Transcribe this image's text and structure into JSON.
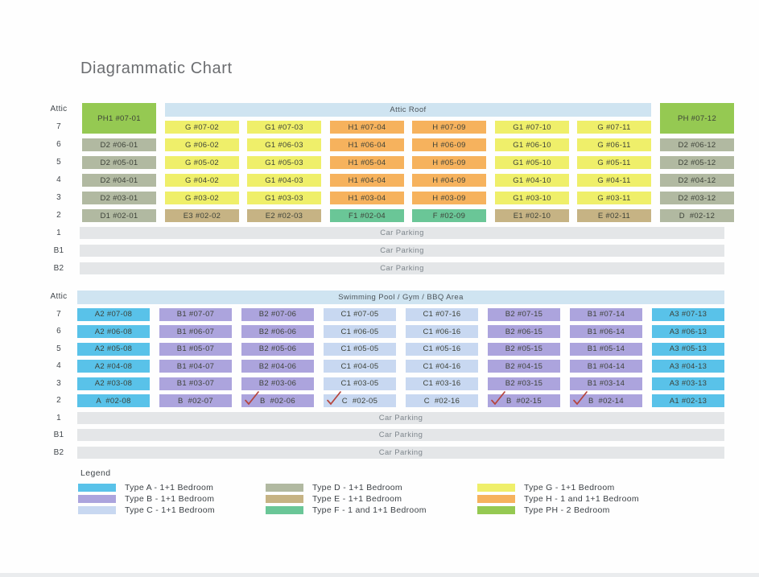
{
  "title": "Diagrammatic Chart",
  "type_colors": {
    "A": "#59c2e9",
    "B": "#aca4dd",
    "C": "#c8d8f1",
    "D": "#b1b9a1",
    "E": "#c6b384",
    "F": "#6ac697",
    "G": "#efef6a",
    "H": "#f6b25d",
    "PH": "#95c952"
  },
  "band_color": "#cfe4f1",
  "parking_color": "#e4e6e8",
  "check_color": "#b5443d",
  "blocks": [
    {
      "id": "tower-block-1",
      "band_label": "Attic Roof",
      "floors": [
        "Attic",
        "7",
        "6",
        "5",
        "4",
        "3",
        "2",
        "1",
        "B1",
        "B2"
      ],
      "columns": [
        {
          "units": [
            {
              "t": "PH",
              "l": "PH1 #07-01",
              "span_attic": true
            },
            {
              "t": "D",
              "l": "D2 #06-01"
            },
            {
              "t": "D",
              "l": "D2 #05-01"
            },
            {
              "t": "D",
              "l": "D2 #04-01"
            },
            {
              "t": "D",
              "l": "D2 #03-01"
            },
            {
              "t": "D",
              "l": "D1 #02-01"
            }
          ]
        },
        {
          "units": [
            {
              "t": "G",
              "l": "G #07-02"
            },
            {
              "t": "G",
              "l": "G #06-02"
            },
            {
              "t": "G",
              "l": "G #05-02"
            },
            {
              "t": "G",
              "l": "G #04-02"
            },
            {
              "t": "G",
              "l": "G #03-02"
            },
            {
              "t": "E",
              "l": "E3 #02-02"
            }
          ]
        },
        {
          "units": [
            {
              "t": "G",
              "l": "G1 #07-03"
            },
            {
              "t": "G",
              "l": "G1 #06-03"
            },
            {
              "t": "G",
              "l": "G1 #05-03"
            },
            {
              "t": "G",
              "l": "G1 #04-03"
            },
            {
              "t": "G",
              "l": "G1 #03-03"
            },
            {
              "t": "E",
              "l": "E2 #02-03"
            }
          ]
        },
        {
          "units": [
            {
              "t": "H",
              "l": "H1 #07-04"
            },
            {
              "t": "H",
              "l": "H1 #06-04"
            },
            {
              "t": "H",
              "l": "H1 #05-04"
            },
            {
              "t": "H",
              "l": "H1 #04-04"
            },
            {
              "t": "H",
              "l": "H1 #03-04"
            },
            {
              "t": "F",
              "l": "F1 #02-04"
            }
          ]
        },
        {
          "units": [
            {
              "t": "H",
              "l": "H #07-09"
            },
            {
              "t": "H",
              "l": "H #06-09"
            },
            {
              "t": "H",
              "l": "H #05-09"
            },
            {
              "t": "H",
              "l": "H #04-09"
            },
            {
              "t": "H",
              "l": "H #03-09"
            },
            {
              "t": "F",
              "l": "F #02-09"
            }
          ]
        },
        {
          "units": [
            {
              "t": "G",
              "l": "G1 #07-10"
            },
            {
              "t": "G",
              "l": "G1 #06-10"
            },
            {
              "t": "G",
              "l": "G1 #05-10"
            },
            {
              "t": "G",
              "l": "G1 #04-10"
            },
            {
              "t": "G",
              "l": "G1 #03-10"
            },
            {
              "t": "E",
              "l": "E1 #02-10"
            }
          ]
        },
        {
          "units": [
            {
              "t": "G",
              "l": "G #07-11"
            },
            {
              "t": "G",
              "l": "G #06-11"
            },
            {
              "t": "G",
              "l": "G #05-11"
            },
            {
              "t": "G",
              "l": "G #04-11"
            },
            {
              "t": "G",
              "l": "G #03-11"
            },
            {
              "t": "E",
              "l": "E #02-11"
            }
          ]
        },
        {
          "units": [
            {
              "t": "PH",
              "l": "PH #07-12",
              "span_attic": true
            },
            {
              "t": "D",
              "l": "D2 #06-12"
            },
            {
              "t": "D",
              "l": "D2 #05-12"
            },
            {
              "t": "D",
              "l": "D2 #04-12"
            },
            {
              "t": "D",
              "l": "D2 #03-12"
            },
            {
              "t": "D",
              "l": "D  #02-12"
            }
          ]
        }
      ],
      "parking": [
        "Car Parking",
        "Car Parking",
        "Car Parking"
      ]
    },
    {
      "id": "tower-block-2",
      "band_label": "Swimming Pool / Gym / BBQ Area",
      "floors": [
        "Attic",
        "7",
        "6",
        "5",
        "4",
        "3",
        "2",
        "1",
        "B1",
        "B2"
      ],
      "columns": [
        {
          "units": [
            {
              "t": "A",
              "l": "A2 #07-08"
            },
            {
              "t": "A",
              "l": "A2 #06-08"
            },
            {
              "t": "A",
              "l": "A2 #05-08"
            },
            {
              "t": "A",
              "l": "A2 #04-08"
            },
            {
              "t": "A",
              "l": "A2 #03-08"
            },
            {
              "t": "A",
              "l": "A  #02-08"
            }
          ]
        },
        {
          "units": [
            {
              "t": "B",
              "l": "B1 #07-07"
            },
            {
              "t": "B",
              "l": "B1 #06-07"
            },
            {
              "t": "B",
              "l": "B1 #05-07"
            },
            {
              "t": "B",
              "l": "B1 #04-07"
            },
            {
              "t": "B",
              "l": "B1 #03-07"
            },
            {
              "t": "B",
              "l": "B  #02-07"
            }
          ]
        },
        {
          "units": [
            {
              "t": "B",
              "l": "B2 #07-06"
            },
            {
              "t": "B",
              "l": "B2 #06-06"
            },
            {
              "t": "B",
              "l": "B2 #05-06"
            },
            {
              "t": "B",
              "l": "B2 #04-06"
            },
            {
              "t": "B",
              "l": "B2 #03-06"
            },
            {
              "t": "B",
              "l": "B  #02-06",
              "check": true
            }
          ]
        },
        {
          "units": [
            {
              "t": "C",
              "l": "C1 #07-05"
            },
            {
              "t": "C",
              "l": "C1 #06-05"
            },
            {
              "t": "C",
              "l": "C1 #05-05"
            },
            {
              "t": "C",
              "l": "C1 #04-05"
            },
            {
              "t": "C",
              "l": "C1 #03-05"
            },
            {
              "t": "C",
              "l": "C  #02-05",
              "check": true
            }
          ]
        },
        {
          "units": [
            {
              "t": "C",
              "l": "C1 #07-16"
            },
            {
              "t": "C",
              "l": "C1 #06-16"
            },
            {
              "t": "C",
              "l": "C1 #05-16"
            },
            {
              "t": "C",
              "l": "C1 #04-16"
            },
            {
              "t": "C",
              "l": "C1 #03-16"
            },
            {
              "t": "C",
              "l": "C  #02-16"
            }
          ]
        },
        {
          "units": [
            {
              "t": "B",
              "l": "B2 #07-15"
            },
            {
              "t": "B",
              "l": "B2 #06-15"
            },
            {
              "t": "B",
              "l": "B2 #05-15"
            },
            {
              "t": "B",
              "l": "B2 #04-15"
            },
            {
              "t": "B",
              "l": "B2 #03-15"
            },
            {
              "t": "B",
              "l": "B  #02-15",
              "check": true
            }
          ]
        },
        {
          "units": [
            {
              "t": "B",
              "l": "B1 #07-14"
            },
            {
              "t": "B",
              "l": "B1 #06-14"
            },
            {
              "t": "B",
              "l": "B1 #05-14"
            },
            {
              "t": "B",
              "l": "B1 #04-14"
            },
            {
              "t": "B",
              "l": "B1 #03-14"
            },
            {
              "t": "B",
              "l": "B  #02-14",
              "check": true
            }
          ]
        },
        {
          "units": [
            {
              "t": "A",
              "l": "A3 #07-13"
            },
            {
              "t": "A",
              "l": "A3 #06-13"
            },
            {
              "t": "A",
              "l": "A3 #05-13"
            },
            {
              "t": "A",
              "l": "A3 #04-13"
            },
            {
              "t": "A",
              "l": "A3 #03-13"
            },
            {
              "t": "A",
              "l": "A1 #02-13"
            }
          ]
        }
      ],
      "parking": [
        "Car Parking",
        "Car Parking",
        "Car Parking"
      ]
    }
  ],
  "legend": {
    "title": "Legend",
    "columns": [
      [
        {
          "type": "A",
          "label": "Type A - 1+1 Bedroom"
        },
        {
          "type": "B",
          "label": "Type B - 1+1 Bedroom"
        },
        {
          "type": "C",
          "label": "Type C - 1+1 Bedroom"
        }
      ],
      [
        {
          "type": "D",
          "label": "Type D - 1+1 Bedroom"
        },
        {
          "type": "E",
          "label": "Type E - 1+1 Bedroom"
        },
        {
          "type": "F",
          "label": "Type F - 1 and 1+1 Bedroom"
        }
      ],
      [
        {
          "type": "G",
          "label": "Type G - 1+1 Bedroom"
        },
        {
          "type": "H",
          "label": "Type H - 1 and 1+1 Bedroom"
        },
        {
          "type": "PH",
          "label": "Type PH - 2 Bedroom"
        }
      ]
    ]
  }
}
